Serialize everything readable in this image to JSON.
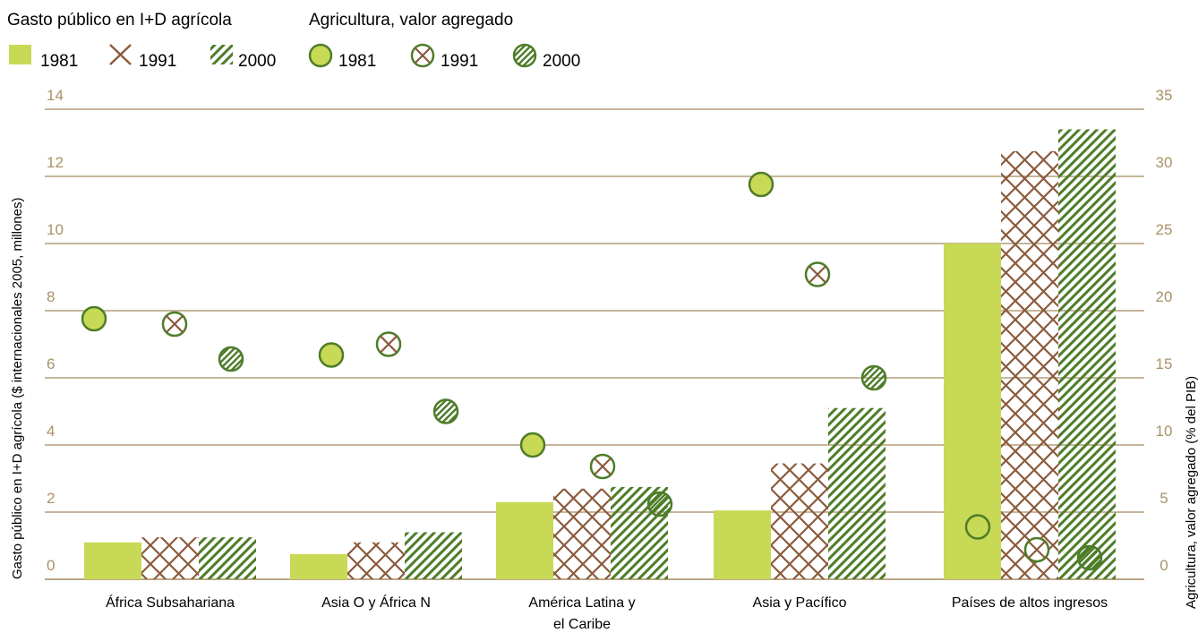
{
  "chart_data": {
    "type": "bar",
    "legend": {
      "bars_title": "Gasto público en I+D agrícola",
      "dots_title": "Agricultura, valor agregado",
      "years": [
        "1981",
        "1991",
        "2000"
      ]
    },
    "categories": [
      [
        "África Subsahariana"
      ],
      [
        "Asia O y África N"
      ],
      [
        "América Latina y",
        "el Caribe"
      ],
      [
        "Asia y Pacífico"
      ],
      [
        "Países de altos ingresos"
      ]
    ],
    "ylabel": "Gasto público en I+D agrícola ($ internacionales 2005, millones)",
    "y2label": "Agricultura, valor agregado (% del PIB)",
    "ylim": [
      0,
      14
    ],
    "y2lim": [
      0,
      35
    ],
    "yticks": [
      "0",
      "2",
      "4",
      "6",
      "8",
      "10",
      "12",
      "14"
    ],
    "y2ticks": [
      "0",
      "5",
      "10",
      "15",
      "20",
      "25",
      "30",
      "35"
    ],
    "grid": true,
    "series": [
      {
        "name": "1981",
        "kind": "bar",
        "pattern": "solid",
        "values": [
          1.1,
          0.75,
          2.3,
          2.05,
          10.0
        ]
      },
      {
        "name": "1991",
        "kind": "bar",
        "pattern": "cross",
        "values": [
          1.25,
          1.1,
          2.7,
          3.45,
          12.75
        ]
      },
      {
        "name": "2000",
        "kind": "bar",
        "pattern": "diagonal",
        "values": [
          1.25,
          1.4,
          2.75,
          5.1,
          13.4
        ]
      },
      {
        "name": "1981",
        "kind": "dot",
        "axis": "right",
        "pattern": "solid",
        "values": [
          19.4,
          16.7,
          10.0,
          29.4,
          3.9
        ]
      },
      {
        "name": "1991",
        "kind": "dot",
        "axis": "right",
        "pattern": "cross",
        "values": [
          19.0,
          17.5,
          8.4,
          22.7,
          2.2
        ]
      },
      {
        "name": "2000",
        "kind": "dot",
        "axis": "right",
        "pattern": "diagonal",
        "values": [
          16.4,
          12.5,
          5.6,
          15.0,
          1.6
        ]
      }
    ],
    "colors": {
      "fill": "#c8d955",
      "cross": "#8b5a3c",
      "diagonal": "#4e7d2a",
      "outline": "#4e7d2a",
      "grid": "#a38a5e",
      "tick": "#a89268"
    }
  }
}
